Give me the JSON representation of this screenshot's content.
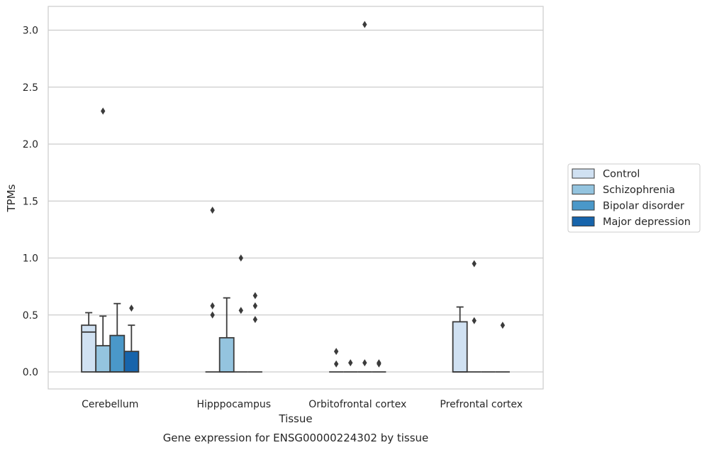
{
  "chart_data": {
    "type": "box",
    "caption": "Gene expression for ENSG00000224302 by tissue",
    "xlabel": "Tissue",
    "ylabel": "TPMs",
    "ylim": [
      -0.15,
      3.21
    ],
    "yticks": [
      "0.0",
      "0.5",
      "1.0",
      "1.5",
      "2.0",
      "2.5",
      "3.0"
    ],
    "grid": true,
    "legend_position": "right",
    "categories": [
      "Cerebellum",
      "Hipppocampus",
      "Orbitofrontal cortex",
      "Prefrontal cortex"
    ],
    "series": [
      {
        "name": "Control",
        "color": "#d0e1f2",
        "boxes": [
          {
            "q1": 0.0,
            "median": 0.35,
            "q3": 0.41,
            "whisker_low": 0.0,
            "whisker_high": 0.52,
            "outliers": []
          },
          {
            "q1": 0.0,
            "median": 0.0,
            "q3": 0.0,
            "whisker_low": 0.0,
            "whisker_high": 0.0,
            "outliers": [
              1.42,
              0.58,
              0.5
            ]
          },
          {
            "q1": 0.0,
            "median": 0.0,
            "q3": 0.0,
            "whisker_low": 0.0,
            "whisker_high": 0.0,
            "outliers": [
              0.18,
              0.07
            ]
          },
          {
            "q1": 0.0,
            "median": 0.0,
            "q3": 0.44,
            "whisker_low": 0.0,
            "whisker_high": 0.57,
            "outliers": []
          }
        ]
      },
      {
        "name": "Schizophrenia",
        "color": "#94c4df",
        "boxes": [
          {
            "q1": 0.0,
            "median": 0.0,
            "q3": 0.23,
            "whisker_low": 0.0,
            "whisker_high": 0.49,
            "outliers": [
              2.29
            ]
          },
          {
            "q1": 0.0,
            "median": 0.0,
            "q3": 0.3,
            "whisker_low": 0.0,
            "whisker_high": 0.65,
            "outliers": []
          },
          {
            "q1": 0.0,
            "median": 0.0,
            "q3": 0.0,
            "whisker_low": 0.0,
            "whisker_high": 0.0,
            "outliers": [
              0.08
            ]
          },
          {
            "q1": 0.0,
            "median": 0.0,
            "q3": 0.0,
            "whisker_low": 0.0,
            "whisker_high": 0.0,
            "outliers": [
              0.95,
              0.45
            ]
          }
        ]
      },
      {
        "name": "Bipolar disorder",
        "color": "#4a98c9",
        "boxes": [
          {
            "q1": 0.0,
            "median": 0.0,
            "q3": 0.32,
            "whisker_low": 0.0,
            "whisker_high": 0.6,
            "outliers": []
          },
          {
            "q1": 0.0,
            "median": 0.0,
            "q3": 0.0,
            "whisker_low": 0.0,
            "whisker_high": 0.0,
            "outliers": [
              1.0,
              0.54
            ]
          },
          {
            "q1": 0.0,
            "median": 0.0,
            "q3": 0.0,
            "whisker_low": 0.0,
            "whisker_high": 0.0,
            "outliers": [
              3.05,
              0.08
            ]
          },
          {
            "q1": 0.0,
            "median": 0.0,
            "q3": 0.0,
            "whisker_low": 0.0,
            "whisker_high": 0.0,
            "outliers": []
          }
        ]
      },
      {
        "name": "Major depression",
        "color": "#1764ab",
        "boxes": [
          {
            "q1": 0.0,
            "median": 0.0,
            "q3": 0.18,
            "whisker_low": 0.0,
            "whisker_high": 0.41,
            "outliers": [
              0.56
            ]
          },
          {
            "q1": 0.0,
            "median": 0.0,
            "q3": 0.0,
            "whisker_low": 0.0,
            "whisker_high": 0.0,
            "outliers": [
              0.67,
              0.58,
              0.46
            ]
          },
          {
            "q1": 0.0,
            "median": 0.0,
            "q3": 0.0,
            "whisker_low": 0.0,
            "whisker_high": 0.0,
            "outliers": [
              0.08,
              0.07
            ]
          },
          {
            "q1": 0.0,
            "median": 0.0,
            "q3": 0.0,
            "whisker_low": 0.0,
            "whisker_high": 0.0,
            "outliers": [
              0.41
            ]
          }
        ]
      }
    ]
  }
}
